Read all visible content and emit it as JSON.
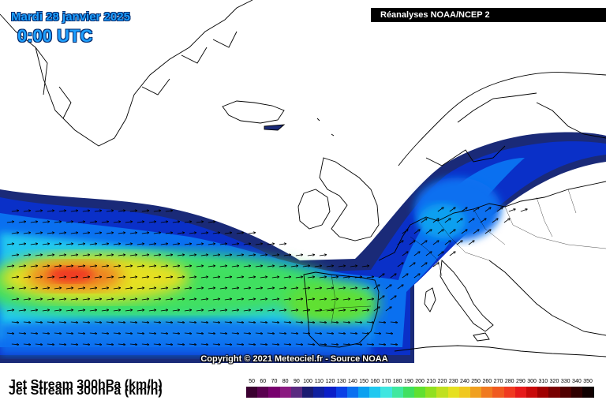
{
  "header": {
    "date": "Mardi 28 janvier 2025",
    "time": "0:00 UTC",
    "source": "Réanalyses NOAA/NCEP 2"
  },
  "footer": {
    "field_label": "Jet Stream 300hPa (km/h)",
    "copyright": "Copyright © 2021 Meteociel.fr - Source NOAA"
  },
  "legend": {
    "values": [
      "50",
      "60",
      "70",
      "80",
      "90",
      "100",
      "110",
      "120",
      "130",
      "140",
      "150",
      "160",
      "170",
      "180",
      "190",
      "200",
      "210",
      "220",
      "230",
      "240",
      "250",
      "260",
      "270",
      "280",
      "290",
      "300",
      "310",
      "320",
      "330",
      "340",
      "350"
    ],
    "colors": [
      "#3a0030",
      "#5a0050",
      "#78006e",
      "#8a1a80",
      "#5a2a80",
      "#1a1a70",
      "#1020a0",
      "#0a1ec8",
      "#0a40e6",
      "#0a70f0",
      "#0aa0f0",
      "#20c8f0",
      "#40e6e0",
      "#40e8a0",
      "#40e060",
      "#60e030",
      "#90e020",
      "#c0e020",
      "#e6e020",
      "#f0c820",
      "#f0a020",
      "#f07a20",
      "#f05a20",
      "#f03a20",
      "#e61a1a",
      "#c80a0a",
      "#a00000",
      "#780000",
      "#500000",
      "#300000",
      "#100000"
    ]
  },
  "colors": {
    "ocean": "#ffffff",
    "coastline": "#000000",
    "jet_outer": "#1a2a78",
    "jet_blue": "#0a3ad0",
    "jet_core": "#f05a20"
  }
}
